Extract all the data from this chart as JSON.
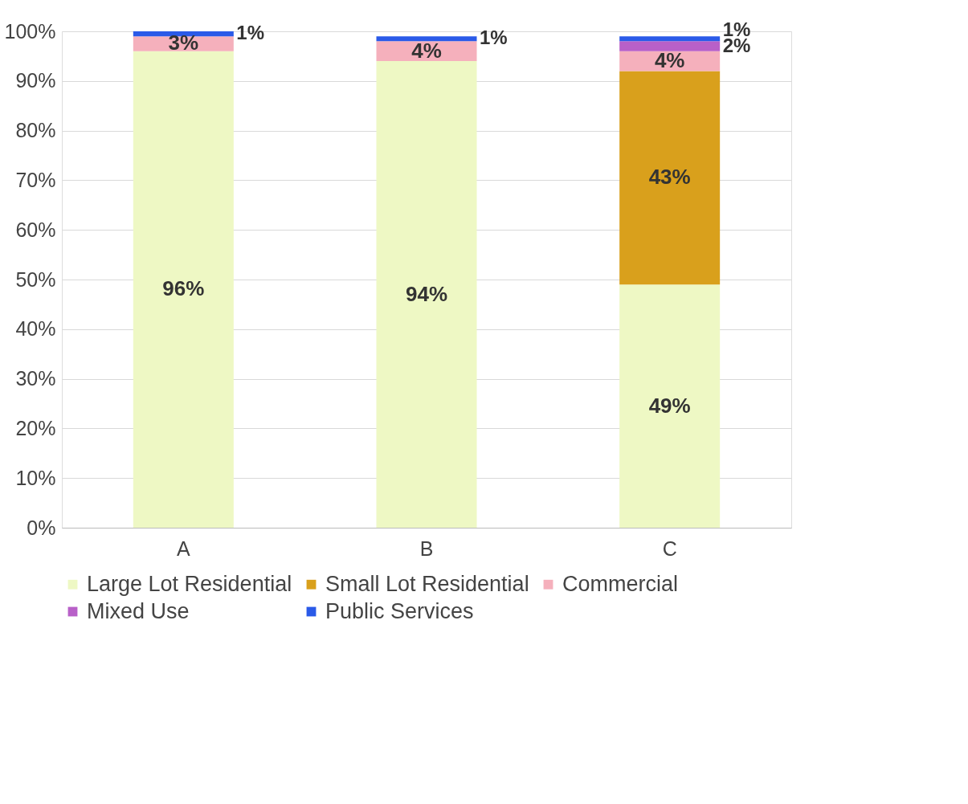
{
  "chart_data": {
    "type": "bar",
    "stacked": true,
    "categories": [
      "A",
      "B",
      "C"
    ],
    "series": [
      {
        "name": "Large Lot Residential",
        "color": "#eef8c4",
        "values": [
          96,
          94,
          49
        ],
        "value_labels": [
          "96%",
          "94%",
          "49%"
        ]
      },
      {
        "name": "Small Lot Residential",
        "color": "#d9a01c",
        "values": [
          null,
          null,
          43
        ],
        "value_labels": [
          null,
          null,
          "43%"
        ]
      },
      {
        "name": "Commercial",
        "color": "#f5b0bc",
        "values": [
          3,
          4,
          4
        ],
        "value_labels": [
          "3%",
          "4%",
          "4%"
        ]
      },
      {
        "name": "Mixed Use",
        "color": "#b860c8",
        "values": [
          null,
          null,
          2
        ],
        "value_labels": [
          null,
          null,
          "2%"
        ]
      },
      {
        "name": "Public Services",
        "color": "#2a5ae8",
        "values": [
          1,
          1,
          1
        ],
        "value_labels": [
          "1%",
          "1%",
          "1%"
        ]
      }
    ],
    "ylim": [
      0,
      100
    ],
    "yticks": [
      {
        "value": 0,
        "label": "0%"
      },
      {
        "value": 10,
        "label": "10%"
      },
      {
        "value": 20,
        "label": "20%"
      },
      {
        "value": 30,
        "label": "30%"
      },
      {
        "value": 40,
        "label": "40%"
      },
      {
        "value": 50,
        "label": "50%"
      },
      {
        "value": 60,
        "label": "60%"
      },
      {
        "value": 70,
        "label": "70%"
      },
      {
        "value": 80,
        "label": "80%"
      },
      {
        "value": 90,
        "label": "90%"
      },
      {
        "value": 100,
        "label": "100%"
      }
    ],
    "grid": "y",
    "legend": "bottom"
  }
}
